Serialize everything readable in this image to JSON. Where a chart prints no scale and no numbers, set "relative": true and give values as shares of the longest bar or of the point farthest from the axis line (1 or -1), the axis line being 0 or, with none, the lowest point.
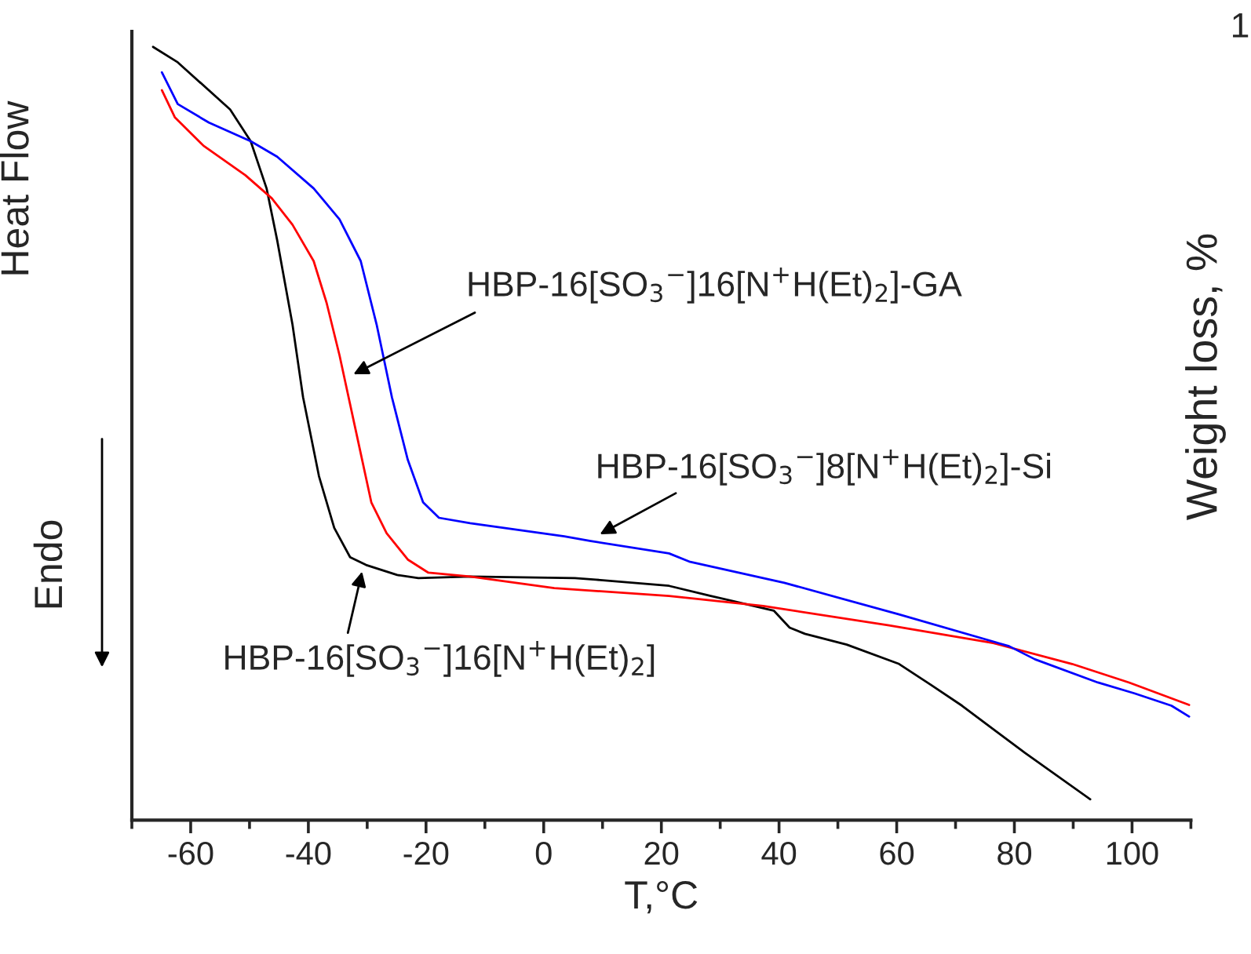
{
  "chart_data": {
    "type": "line",
    "relative": true,
    "xlabel": "T,°C",
    "ylabel": "Heat Flow",
    "y2label": "Weight loss, %",
    "xlim": [
      -70,
      110
    ],
    "xticks": [
      -60,
      -40,
      -20,
      0,
      20,
      40,
      60,
      80,
      100
    ],
    "grid": false,
    "legend": false,
    "marker": "none",
    "line_style": "solid",
    "series": [
      {
        "color": "#000000",
        "x": [
          -66.4,
          -62.2,
          -53.3,
          -49.8,
          -47.1,
          -45.3,
          -42.7,
          -40.9,
          -38.2,
          -35.6,
          -32.9,
          -30.2,
          -24.9,
          -21.3,
          -12.5,
          5.3,
          8.9,
          21.3,
          28.4,
          39.1,
          41.8,
          44.4,
          51.5,
          60.4,
          65.8,
          71.1,
          81.8,
          92.9
        ],
        "values": [
          1.0,
          0.98,
          0.919,
          0.878,
          0.817,
          0.75,
          0.641,
          0.547,
          0.445,
          0.378,
          0.34,
          0.33,
          0.317,
          0.313,
          0.315,
          0.313,
          0.311,
          0.303,
          0.29,
          0.271,
          0.249,
          0.241,
          0.227,
          0.202,
          0.175,
          0.148,
          0.087,
          0.027
        ]
      },
      {
        "color": "#ff0000",
        "x": [
          -64.9,
          -62.7,
          -57.8,
          -50.7,
          -46.2,
          -42.7,
          -39.1,
          -36.9,
          -34.7,
          -32.0,
          -29.3,
          -26.7,
          -23.1,
          -19.6,
          -12.5,
          1.8,
          21.3,
          37.3,
          58.7,
          76.4,
          89.8,
          99.5,
          109.7
        ],
        "values": [
          0.944,
          0.909,
          0.872,
          0.834,
          0.804,
          0.77,
          0.723,
          0.669,
          0.601,
          0.506,
          0.411,
          0.371,
          0.337,
          0.32,
          0.315,
          0.3,
          0.29,
          0.277,
          0.252,
          0.229,
          0.202,
          0.178,
          0.149
        ]
      },
      {
        "color": "#0000ff",
        "x": [
          -64.9,
          -62.2,
          -56.9,
          -49.8,
          -45.3,
          -39.1,
          -34.7,
          -31.1,
          -28.4,
          -25.8,
          -23.1,
          -20.5,
          -17.8,
          -12.5,
          3.5,
          8.0,
          21.3,
          24.9,
          40.9,
          60.4,
          79.1,
          83.5,
          94.2,
          100.4,
          106.7,
          109.7
        ],
        "values": [
          0.967,
          0.926,
          0.902,
          0.878,
          0.858,
          0.817,
          0.777,
          0.723,
          0.641,
          0.547,
          0.466,
          0.411,
          0.391,
          0.384,
          0.367,
          0.361,
          0.345,
          0.334,
          0.307,
          0.266,
          0.225,
          0.208,
          0.178,
          0.164,
          0.148,
          0.134
        ]
      }
    ],
    "annotations": [
      {
        "text": "HBP-16[SO$_{3}$$^{−}$]16[N$^{+}$H(Et)$_{2}$]-GA",
        "x": -33.0,
        "y": 0.574
      },
      {
        "text": "HBP-16[SO$_{3}$$^{−}$]8[N$^{+}$H(Et)$_{2}$]-Si",
        "x": 8.9,
        "y": 0.367
      },
      {
        "text": "HBP-16[SO$_{3}$$^{−}$]16[N$^{+}$H(Et)$_{2}$]",
        "x": -30.7,
        "y": 0.327
      },
      "Endo",
      "1"
    ]
  }
}
